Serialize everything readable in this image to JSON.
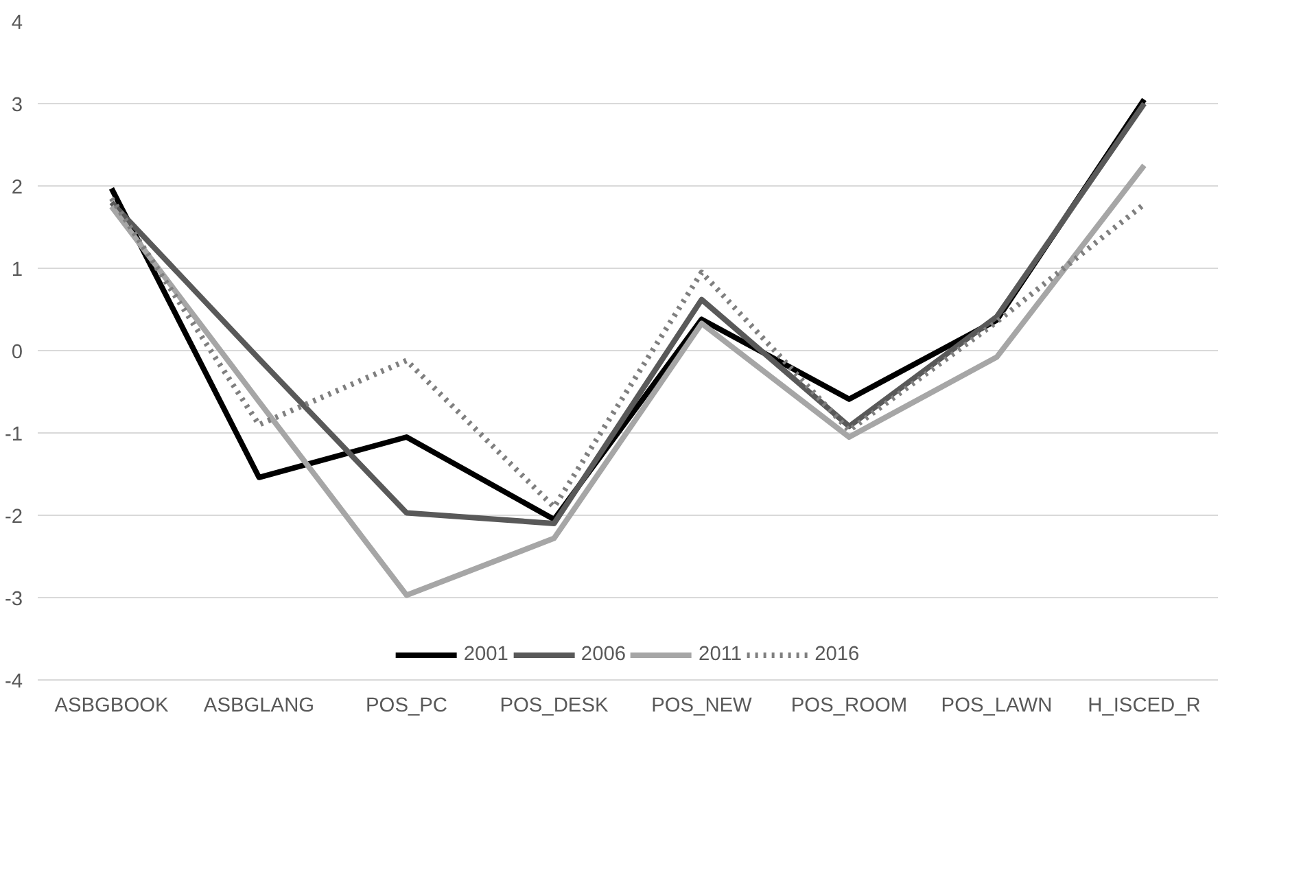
{
  "chart_data": {
    "type": "line",
    "categories": [
      "ASBGBOOK",
      "ASBGLANG",
      "POS_PC",
      "POS_DESK",
      "POS_NEW",
      "POS_ROOM",
      "POS_LAWN",
      "H_ISCED_R"
    ],
    "series": [
      {
        "name": "2001",
        "color": "#000000",
        "line_style": "solid",
        "values": [
          1.97,
          -1.54,
          -1.05,
          -2.05,
          0.38,
          -0.59,
          0.37,
          3.05
        ]
      },
      {
        "name": "2006",
        "color": "#595959",
        "line_style": "solid",
        "values": [
          1.8,
          -0.1,
          -1.97,
          -2.1,
          0.62,
          -0.92,
          0.41,
          3.0
        ]
      },
      {
        "name": "2011",
        "color": "#a6a6a6",
        "line_style": "solid",
        "values": [
          1.75,
          -0.62,
          -2.97,
          -2.28,
          0.33,
          -1.05,
          -0.08,
          2.25
        ]
      },
      {
        "name": "2016",
        "color": "#7f7f7f",
        "line_style": "dotted",
        "values": [
          1.85,
          -0.9,
          -0.12,
          -1.9,
          0.95,
          -0.97,
          0.35,
          1.78
        ]
      }
    ],
    "ylim": [
      -4,
      4
    ],
    "yticks": [
      -4,
      -3,
      -2,
      -1,
      0,
      1,
      2,
      3,
      4
    ],
    "grid": "y",
    "legend": "bottom",
    "marker": "none"
  }
}
